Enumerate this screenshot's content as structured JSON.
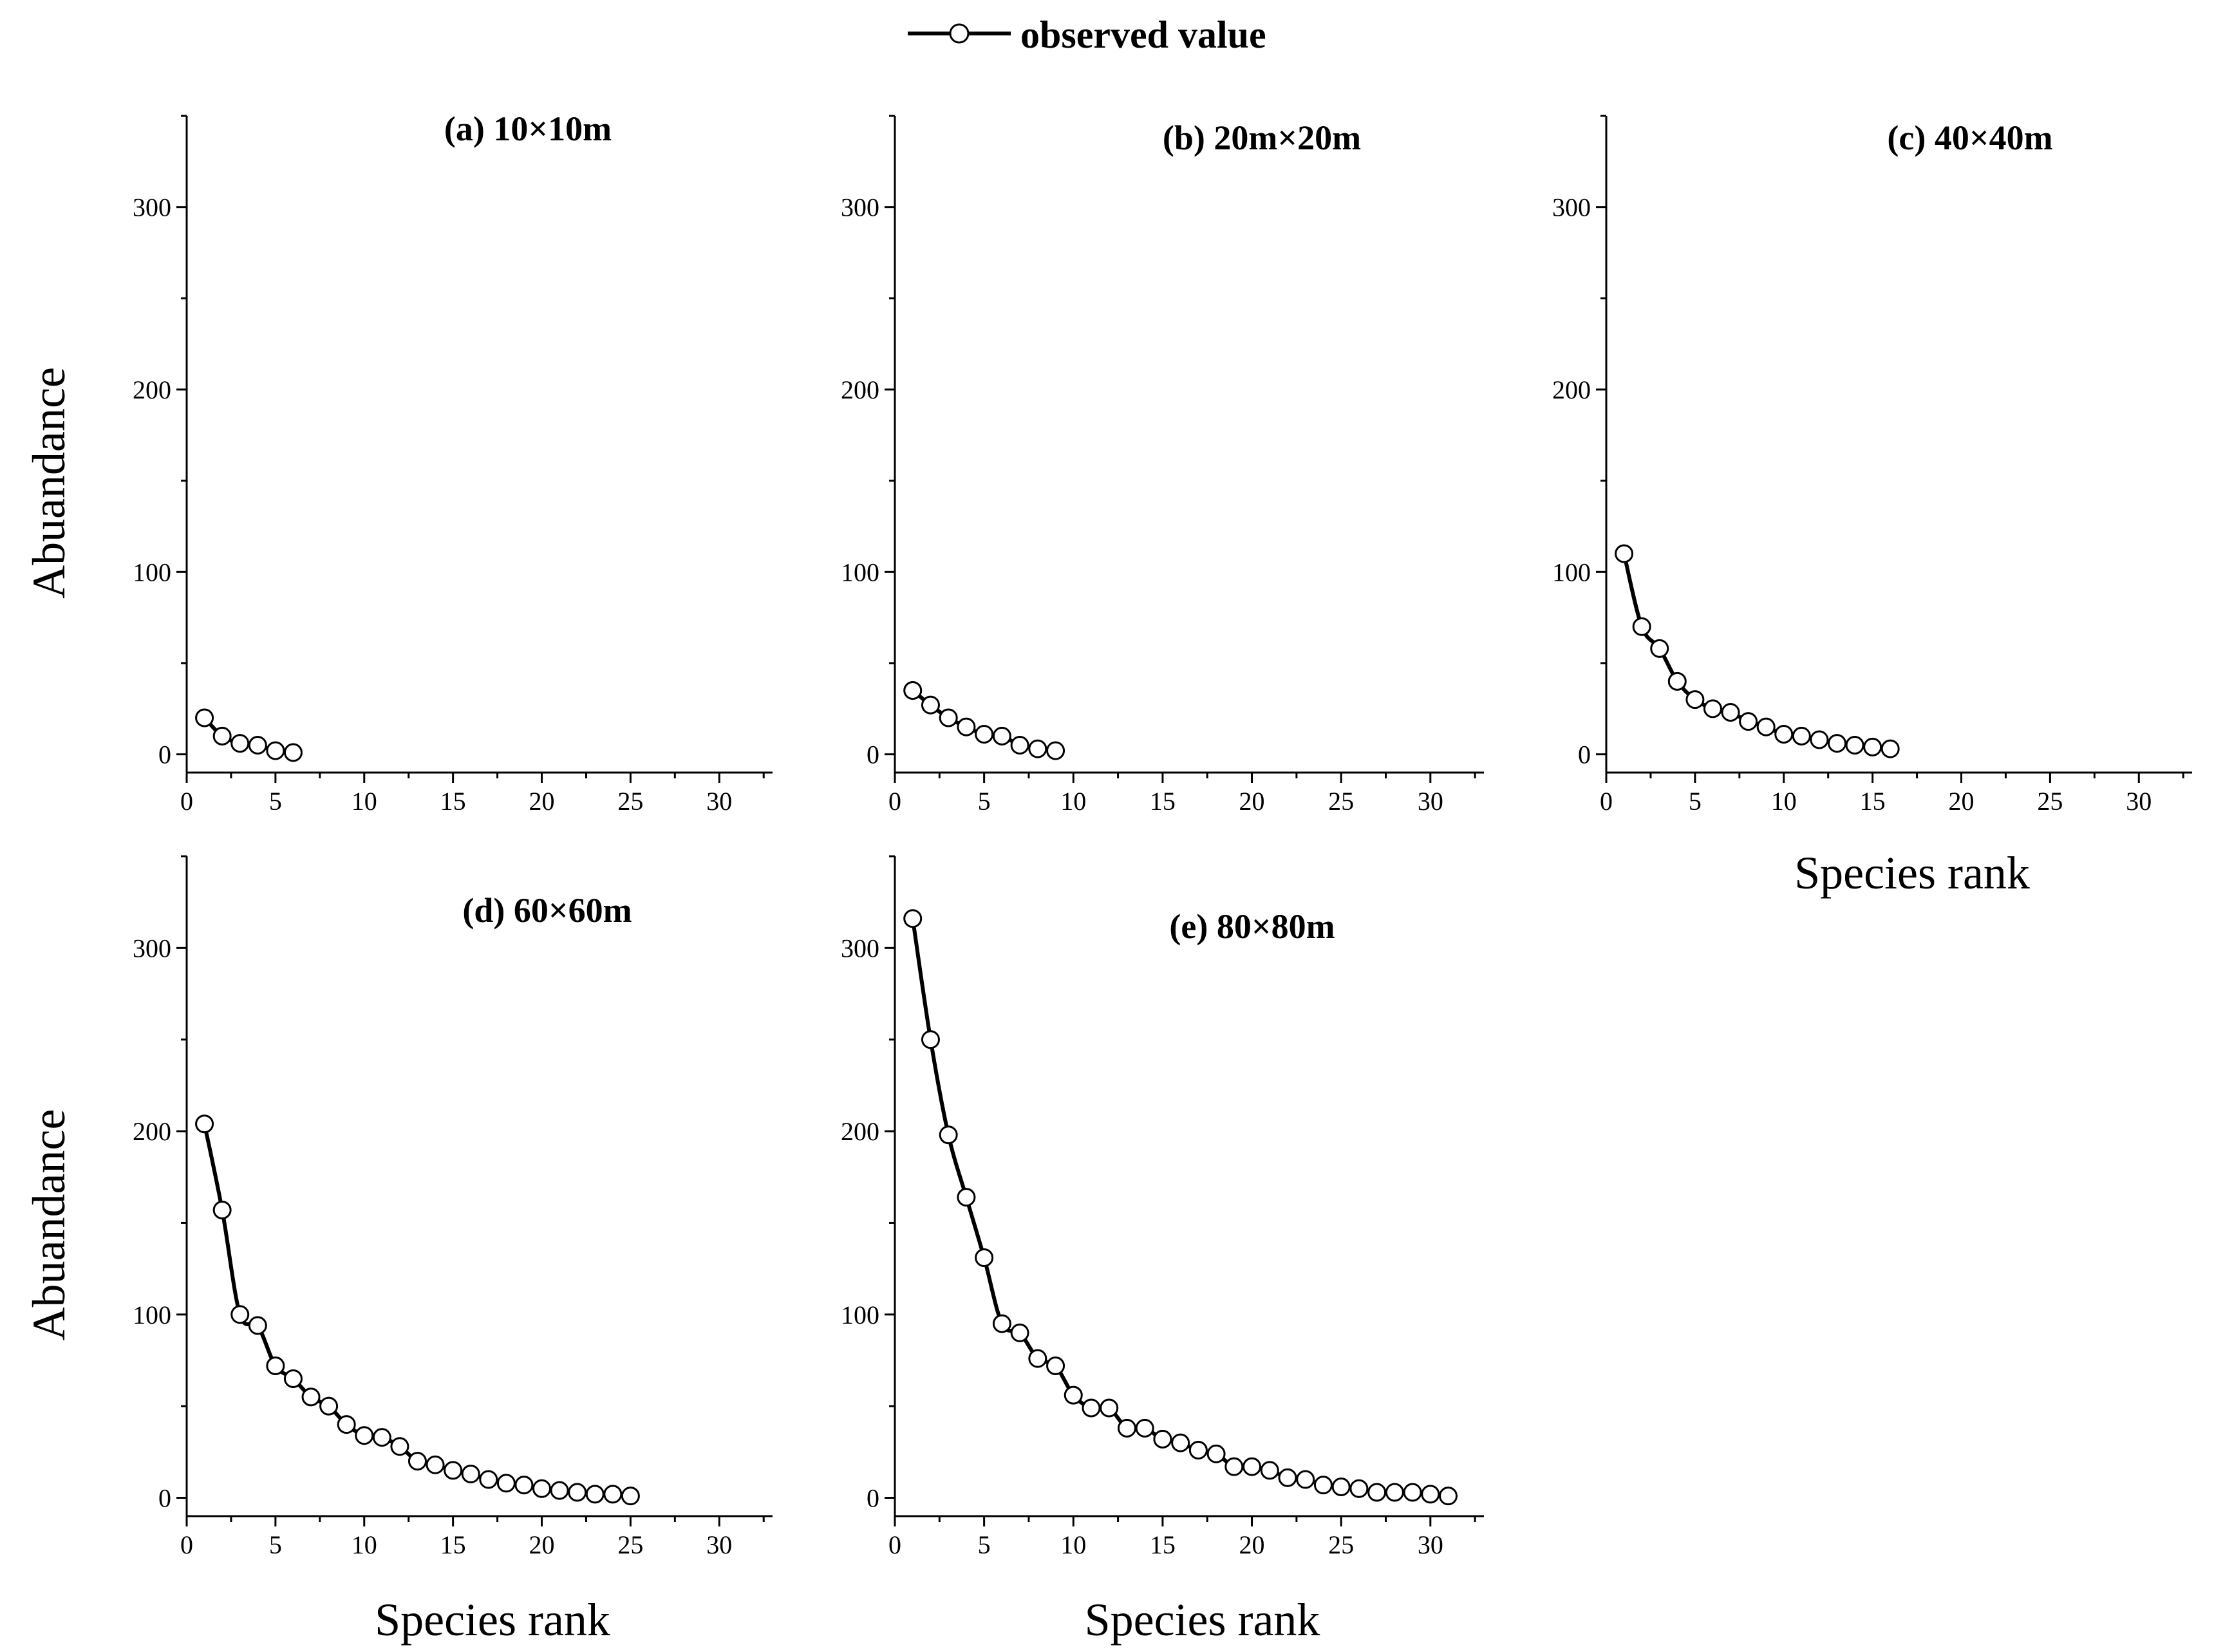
{
  "legend": {
    "label": "observed value"
  },
  "chart_data": [
    {
      "id": "a",
      "type": "line",
      "title": "(a) 10×10m",
      "xlabel": "",
      "ylabel": "Abuandance",
      "xlim": [
        0,
        33
      ],
      "ylim": [
        -10,
        350
      ],
      "xticks": [
        0,
        5,
        10,
        15,
        20,
        25,
        30
      ],
      "yticks": [
        0,
        100,
        200,
        300
      ],
      "series": [
        {
          "name": "observed value",
          "x": [
            1,
            2,
            3,
            4,
            5,
            6
          ],
          "values": [
            20,
            10,
            6,
            5,
            2,
            1
          ]
        }
      ]
    },
    {
      "id": "b",
      "type": "line",
      "title": "(b) 20m×20m",
      "xlabel": "",
      "ylabel": "",
      "xlim": [
        0,
        33
      ],
      "ylim": [
        -10,
        350
      ],
      "xticks": [
        0,
        5,
        10,
        15,
        20,
        25,
        30
      ],
      "yticks": [
        0,
        100,
        200,
        300
      ],
      "series": [
        {
          "name": "observed value",
          "x": [
            1,
            2,
            3,
            4,
            5,
            6,
            7,
            8,
            9
          ],
          "values": [
            35,
            27,
            20,
            15,
            11,
            10,
            5,
            3,
            2
          ]
        }
      ]
    },
    {
      "id": "c",
      "type": "line",
      "title": "(c) 40×40m",
      "xlabel": "Species rank",
      "ylabel": "",
      "xlim": [
        0,
        33
      ],
      "ylim": [
        -10,
        350
      ],
      "xticks": [
        0,
        5,
        10,
        15,
        20,
        25,
        30
      ],
      "yticks": [
        0,
        100,
        200,
        300
      ],
      "series": [
        {
          "name": "observed value",
          "x": [
            1,
            2,
            3,
            4,
            5,
            6,
            7,
            8,
            9,
            10,
            11,
            12,
            13,
            14,
            15,
            16
          ],
          "values": [
            110,
            70,
            58,
            40,
            30,
            25,
            23,
            18,
            15,
            11,
            10,
            8,
            6,
            5,
            4,
            3
          ]
        }
      ]
    },
    {
      "id": "d",
      "type": "line",
      "title": "(d) 60×60m",
      "xlabel": "Species rank",
      "ylabel": "Abuandance",
      "xlim": [
        0,
        33
      ],
      "ylim": [
        -10,
        350
      ],
      "xticks": [
        0,
        5,
        10,
        15,
        20,
        25,
        30
      ],
      "yticks": [
        0,
        100,
        200,
        300
      ],
      "series": [
        {
          "name": "observed value",
          "x": [
            1,
            2,
            3,
            4,
            5,
            6,
            7,
            8,
            9,
            10,
            11,
            12,
            13,
            14,
            15,
            16,
            17,
            18,
            19,
            20,
            21,
            22,
            23,
            24,
            25
          ],
          "values": [
            204,
            157,
            100,
            94,
            72,
            65,
            55,
            50,
            40,
            34,
            33,
            28,
            20,
            18,
            15,
            13,
            10,
            8,
            7,
            5,
            4,
            3,
            2,
            2,
            1
          ]
        }
      ]
    },
    {
      "id": "e",
      "type": "line",
      "title": "(e) 80×80m",
      "xlabel": "Species rank",
      "ylabel": "",
      "xlim": [
        0,
        33
      ],
      "ylim": [
        -10,
        350
      ],
      "xticks": [
        0,
        5,
        10,
        15,
        20,
        25,
        30
      ],
      "yticks": [
        0,
        100,
        200,
        300
      ],
      "series": [
        {
          "name": "observed value",
          "x": [
            1,
            2,
            3,
            4,
            5,
            6,
            7,
            8,
            9,
            10,
            11,
            12,
            13,
            14,
            15,
            16,
            17,
            18,
            19,
            20,
            21,
            22,
            23,
            24,
            25,
            26,
            27,
            28,
            29,
            30,
            31
          ],
          "values": [
            316,
            250,
            198,
            164,
            131,
            95,
            90,
            76,
            72,
            56,
            49,
            49,
            38,
            38,
            32,
            30,
            26,
            24,
            17,
            17,
            15,
            11,
            10,
            7,
            6,
            5,
            3,
            3,
            3,
            2,
            1
          ]
        }
      ]
    }
  ]
}
